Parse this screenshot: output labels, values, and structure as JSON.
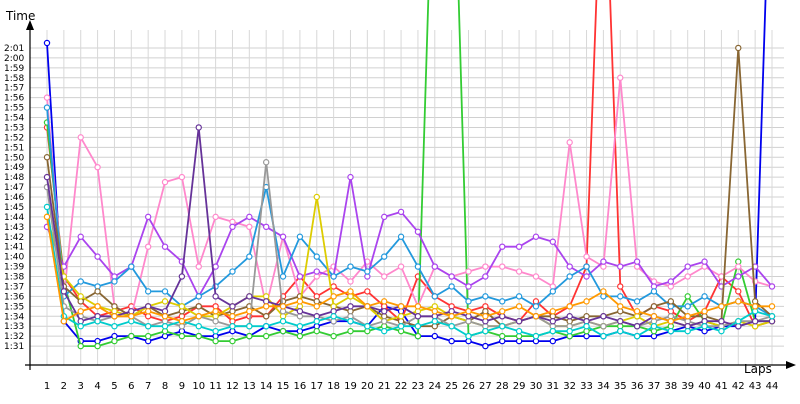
{
  "chart_data": {
    "type": "line",
    "title": "",
    "xlabel": "Laps",
    "ylabel": "Time",
    "xlim": [
      1,
      44
    ],
    "ylim_seconds": [
      90,
      122
    ],
    "grid": true,
    "legend": "none",
    "categories": [
      "1",
      "2",
      "3",
      "4",
      "5",
      "6",
      "7",
      "8",
      "9",
      "10",
      "11",
      "12",
      "13",
      "14",
      "15",
      "16",
      "17",
      "18",
      "19",
      "20",
      "21",
      "22",
      "23",
      "24",
      "25",
      "26",
      "27",
      "28",
      "29",
      "30",
      "31",
      "32",
      "33",
      "34",
      "35",
      "36",
      "37",
      "38",
      "39",
      "40",
      "41",
      "42",
      "43",
      "44"
    ],
    "y_tick_labels": [
      "1:31",
      "1:32",
      "1:33",
      "1:34",
      "1:35",
      "1:36",
      "1:37",
      "1:38",
      "1:39",
      "1:40",
      "1:41",
      "1:42",
      "1:43",
      "1:44",
      "1:45",
      "1:46",
      "1:47",
      "1:48",
      "1:49",
      "1:50",
      "1:51",
      "1:52",
      "1:53",
      "1:54",
      "1:55",
      "1:56",
      "1:57",
      "1:58",
      "1:59",
      "2:00",
      "2:01"
    ],
    "series": [
      {
        "color": "#0000ee",
        "values": [
          121.5,
          93.5,
          91.5,
          91.5,
          92.0,
          92.0,
          91.5,
          92.0,
          92.5,
          92.0,
          92.0,
          92.5,
          92.0,
          93.0,
          92.5,
          92.5,
          93.0,
          93.5,
          93.5,
          93.0,
          95.0,
          94.5,
          92.0,
          92.0,
          91.5,
          91.5,
          91.0,
          91.5,
          91.5,
          91.5,
          91.5,
          92.0,
          92.0,
          92.0,
          92.5,
          92.0,
          92.0,
          92.5,
          93.0,
          92.5,
          93.0,
          93.0,
          93.5,
          146.0
        ]
      },
      {
        "color": "#ff3333",
        "values": [
          113.0,
          98.0,
          95.5,
          94.0,
          94.5,
          95.0,
          94.0,
          93.5,
          94.0,
          95.0,
          95.0,
          93.5,
          94.0,
          94.0,
          96.0,
          98.0,
          96.0,
          97.0,
          96.0,
          96.5,
          95.0,
          93.5,
          98.0,
          96.0,
          95.0,
          94.5,
          95.0,
          94.0,
          93.5,
          95.5,
          94.0,
          95.0,
          99.0,
          145.0,
          97.0,
          94.0,
          95.0,
          94.5,
          93.5,
          94.5,
          98.0,
          96.5,
          93.0,
          93.5
        ]
      },
      {
        "color": "#33cc33",
        "values": [
          113.5,
          97.5,
          91.0,
          91.0,
          91.5,
          92.0,
          92.0,
          92.5,
          92.0,
          92.0,
          91.5,
          91.5,
          92.0,
          92.0,
          92.5,
          92.0,
          92.5,
          92.0,
          92.5,
          92.5,
          93.0,
          92.5,
          92.0,
          147.0,
          150.0,
          92.0,
          92.5,
          92.0,
          92.0,
          92.0,
          92.5,
          92.0,
          92.5,
          93.0,
          93.0,
          93.0,
          92.5,
          93.0,
          96.0,
          93.5,
          93.0,
          99.5,
          93.5,
          93.5
        ]
      },
      {
        "color": "#ff88cc",
        "values": [
          116.0,
          96.0,
          112.0,
          109.0,
          95.0,
          94.0,
          101.0,
          107.5,
          108.0,
          99.0,
          104.0,
          103.5,
          103.0,
          95.0,
          102.0,
          96.0,
          98.0,
          99.0,
          97.5,
          99.5,
          98.0,
          99.0,
          95.0,
          99.0,
          98.0,
          98.5,
          99.0,
          99.0,
          98.5,
          98.0,
          97.0,
          111.5,
          100.0,
          99.0,
          118.0,
          99.0,
          97.5,
          97.0,
          98.0,
          99.0,
          98.0,
          99.0,
          97.5,
          97.0
        ]
      },
      {
        "color": "#aa44ee",
        "values": [
          103.0,
          99.0,
          102.0,
          100.0,
          98.0,
          99.0,
          104.0,
          101.0,
          99.5,
          96.0,
          99.0,
          103.0,
          104.0,
          103.0,
          102.0,
          98.0,
          98.5,
          98.0,
          108.0,
          98.0,
          104.0,
          104.5,
          102.5,
          99.0,
          98.0,
          97.0,
          98.0,
          101.0,
          101.0,
          102.0,
          101.5,
          99.0,
          98.0,
          99.5,
          99.0,
          99.5,
          97.0,
          97.5,
          99.0,
          99.5,
          97.0,
          98.0,
          99.0,
          97.0
        ]
      },
      {
        "color": "#2299dd",
        "values": [
          115.0,
          96.0,
          97.5,
          97.0,
          97.5,
          99.0,
          96.5,
          96.5,
          95.0,
          96.0,
          97.0,
          98.5,
          100.0,
          107.0,
          98.0,
          102.0,
          100.0,
          98.0,
          99.0,
          98.5,
          100.0,
          102.0,
          99.0,
          96.0,
          97.0,
          95.5,
          96.0,
          95.5,
          96.0,
          95.0,
          96.5,
          98.0,
          99.0,
          96.0,
          96.0,
          95.5,
          96.5,
          95.0,
          95.0,
          96.0,
          95.0,
          95.5,
          95.0,
          94.0
        ]
      },
      {
        "color": "#886633",
        "values": [
          110.0,
          97.0,
          95.5,
          96.5,
          95.0,
          94.0,
          95.0,
          94.0,
          94.5,
          95.0,
          94.0,
          94.5,
          95.0,
          94.0,
          95.5,
          96.0,
          95.5,
          95.0,
          94.5,
          95.0,
          94.0,
          93.5,
          93.0,
          93.0,
          94.0,
          93.5,
          94.5,
          93.0,
          93.5,
          94.0,
          94.0,
          93.5,
          94.0,
          94.0,
          94.5,
          94.0,
          95.0,
          95.5,
          94.0,
          94.0,
          93.5,
          121.0,
          95.5,
          94.0
        ]
      },
      {
        "color": "#ddcc00",
        "values": [
          104.0,
          98.0,
          96.0,
          95.0,
          94.5,
          94.0,
          95.0,
          95.5,
          95.0,
          94.0,
          94.0,
          95.0,
          96.0,
          96.0,
          94.0,
          95.0,
          106.0,
          95.0,
          96.0,
          95.0,
          93.5,
          94.0,
          94.5,
          95.0,
          94.0,
          93.5,
          93.0,
          93.0,
          93.5,
          94.0,
          93.0,
          93.0,
          93.5,
          93.0,
          93.5,
          94.0,
          93.0,
          93.5,
          93.0,
          93.5,
          93.0,
          93.5,
          93.0,
          93.5
        ]
      },
      {
        "color": "#999999",
        "values": [
          107.0,
          95.0,
          94.0,
          93.5,
          94.0,
          94.0,
          93.0,
          93.5,
          93.0,
          94.0,
          93.5,
          93.0,
          93.0,
          109.5,
          94.5,
          94.0,
          94.0,
          93.5,
          94.0,
          93.0,
          93.5,
          93.0,
          94.0,
          94.0,
          93.0,
          93.5,
          93.0,
          93.0,
          93.5,
          94.0,
          93.0,
          93.0,
          93.5,
          93.0,
          93.5,
          93.0,
          93.5,
          94.0,
          93.5,
          93.0,
          93.0,
          93.5,
          93.5,
          94.0
        ]
      },
      {
        "color": "#663399",
        "values": [
          108.0,
          96.5,
          93.5,
          94.0,
          94.0,
          94.5,
          95.0,
          94.5,
          98.0,
          113.0,
          96.0,
          95.0,
          96.0,
          95.5,
          95.0,
          94.5,
          94.0,
          94.5,
          95.0,
          95.0,
          94.5,
          95.0,
          94.0,
          94.0,
          94.5,
          94.0,
          93.5,
          94.0,
          93.5,
          94.0,
          93.5,
          94.0,
          93.5,
          94.0,
          93.5,
          93.0,
          94.0,
          93.5,
          93.0,
          93.5,
          93.5,
          93.0,
          93.5,
          93.5
        ]
      },
      {
        "color": "#00cccc",
        "values": [
          105.0,
          94.0,
          93.0,
          93.5,
          93.0,
          93.5,
          93.0,
          93.0,
          93.5,
          93.0,
          92.5,
          93.0,
          93.0,
          93.0,
          93.5,
          93.0,
          93.5,
          94.0,
          93.5,
          93.0,
          92.5,
          93.0,
          93.0,
          93.5,
          93.0,
          92.0,
          92.5,
          93.0,
          92.5,
          92.0,
          92.5,
          92.5,
          93.0,
          92.0,
          92.5,
          92.0,
          93.0,
          92.5,
          92.5,
          93.0,
          92.5,
          93.5,
          94.5,
          94.0
        ]
      },
      {
        "color": "#ff9900",
        "values": [
          104.0,
          93.5,
          94.5,
          95.0,
          94.0,
          94.0,
          94.5,
          94.0,
          93.5,
          94.0,
          94.5,
          94.0,
          94.5,
          95.0,
          95.0,
          95.5,
          95.0,
          96.0,
          96.5,
          95.0,
          95.5,
          95.0,
          95.0,
          94.5,
          94.0,
          94.5,
          94.0,
          94.5,
          95.0,
          94.0,
          94.5,
          95.0,
          95.5,
          96.5,
          95.0,
          94.5,
          94.0,
          93.5,
          94.0,
          94.5,
          95.0,
          95.5,
          95.0,
          95.0
        ]
      }
    ]
  }
}
